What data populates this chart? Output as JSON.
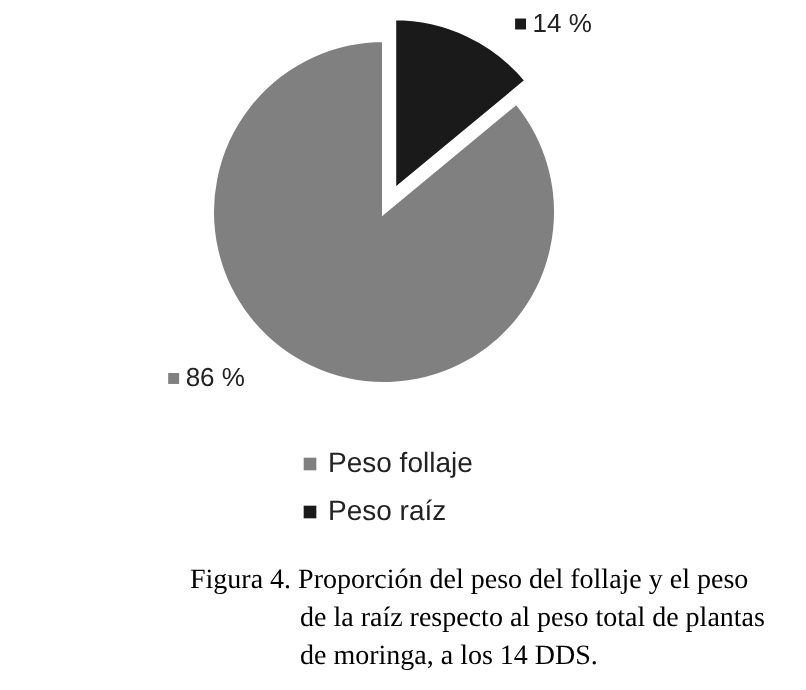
{
  "chart_data": {
    "type": "pie",
    "categories": [
      "Peso raíz",
      "Peso follaje"
    ],
    "values": [
      14,
      86
    ],
    "colors": [
      "#1a1a1a",
      "#808080"
    ],
    "value_labels": [
      "14 %",
      "86 %"
    ],
    "legend": "bottom",
    "annotations": [
      "Figura 4. Proporción del peso del follaje y el peso\nde la raíz respecto al peso total de plantas\nde moringa, a los 14 DDS."
    ]
  }
}
